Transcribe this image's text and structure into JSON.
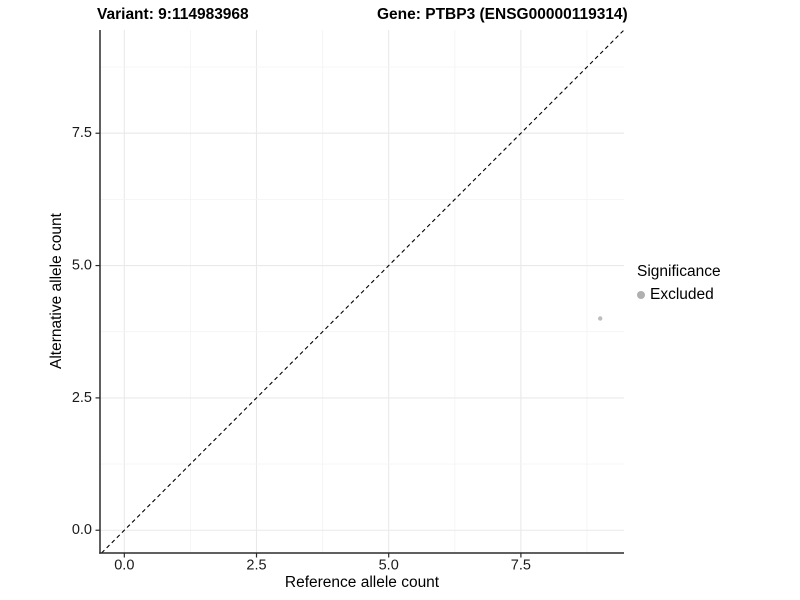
{
  "header": {
    "variant_title": "Variant: 9:114983968",
    "gene_title": "Gene: PTBP3 (ENSG00000119314)"
  },
  "chart_data": {
    "type": "scatter",
    "titles": {
      "left": "Variant: 9:114983968",
      "right": "Gene: PTBP3 (ENSG00000119314)"
    },
    "xlabel": "Reference allele count",
    "ylabel": "Alternative allele count",
    "xlim": [
      -0.46,
      9.45
    ],
    "ylim": [
      -0.43,
      9.45
    ],
    "xticks": [
      "0.0",
      "2.5",
      "5.0",
      "7.5"
    ],
    "xtick_values": [
      0,
      2.5,
      5,
      7.5
    ],
    "yticks": [
      "0.0",
      "2.5",
      "5.0",
      "7.5"
    ],
    "ytick_values": [
      0,
      2.5,
      5,
      7.5
    ],
    "grid": {
      "on": true,
      "minor_step": 1.25,
      "major_color": "#e9e9e9",
      "minor_color": "#f4f4f4"
    },
    "reference_line": {
      "style": "dashed",
      "slope": 1,
      "intercept": 0,
      "color": "#000000"
    },
    "series": [
      {
        "name": "Excluded",
        "color": "#bdbdbd",
        "points": [
          {
            "x": 9,
            "y": 4
          }
        ]
      }
    ],
    "legend": {
      "title": "Significance",
      "position": "right",
      "entries": [
        {
          "label": "Excluded",
          "color": "#b0b0b0"
        }
      ]
    },
    "colors": {
      "axis_line": "#2b2b2b",
      "tick": "#2b2b2b",
      "tick_label": "#1a1a1a"
    }
  }
}
